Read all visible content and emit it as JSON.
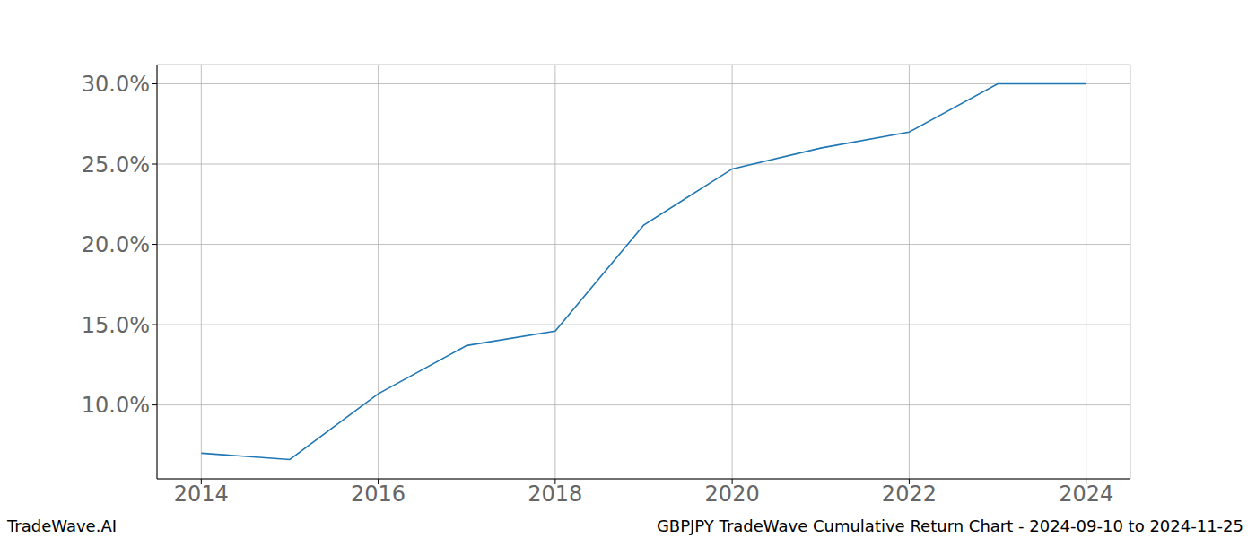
{
  "chart_data": {
    "type": "line",
    "title": "GBPJPY TradeWave Cumulative Return Chart - 2024-09-10 to 2024-11-25",
    "annotations": [
      "TradeWave.AI"
    ],
    "x": [
      2014,
      2015,
      2016,
      2017,
      2018,
      2019,
      2020,
      2021,
      2022,
      2023,
      2024
    ],
    "values": [
      7.0,
      6.6,
      10.7,
      13.7,
      14.6,
      21.2,
      24.7,
      26.0,
      27.0,
      30.0,
      30.0
    ],
    "color": "#1f77b4",
    "xlim": [
      2013.5,
      2024.5
    ],
    "xticks": [
      2014,
      2016,
      2018,
      2020,
      2022,
      2024
    ],
    "ylim": [
      5.4,
      31.2
    ],
    "yticks": [
      {
        "value": 10,
        "label": "10.0%"
      },
      {
        "value": 15,
        "label": "15.0%"
      },
      {
        "value": 20,
        "label": "20.0%"
      },
      {
        "value": 25,
        "label": "25.0%"
      },
      {
        "value": 30,
        "label": "30.0%"
      }
    ],
    "grid": true
  }
}
